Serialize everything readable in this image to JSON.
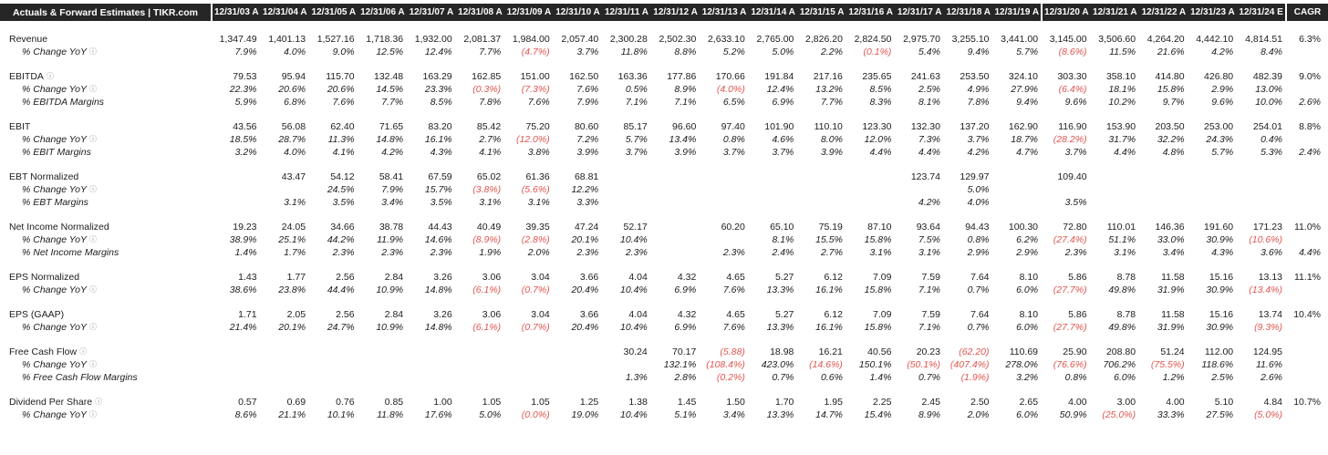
{
  "colors": {
    "header_bg": "#262626",
    "header_text": "#ffffff",
    "text": "#1c1c1c",
    "negative": "#df5650"
  },
  "header": {
    "title": "Actuals & Forward Estimates | TIKR.com",
    "columns": [
      "12/31/03 A",
      "12/31/04 A",
      "12/31/05 A",
      "12/31/06 A",
      "12/31/07 A",
      "12/31/08 A",
      "12/31/09 A",
      "12/31/10 A",
      "12/31/11 A",
      "12/31/12 A",
      "12/31/13 A",
      "12/31/14 A",
      "12/31/15 A",
      "12/31/16 A",
      "12/31/17 A",
      "12/31/18 A",
      "12/31/19 A",
      "12/31/20 A",
      "12/31/21 A",
      "12/31/22 A",
      "12/31/23 A",
      "12/31/24 E",
      "CAGR"
    ],
    "separators_before": [
      "12/31/20 A",
      "CAGR"
    ]
  },
  "info_icon_glyph": "ⓘ",
  "groups": [
    {
      "name": "revenue",
      "rows": [
        {
          "label": "Revenue",
          "style": "main",
          "info": false,
          "values": [
            "1,347.49",
            "1,401.13",
            "1,527.16",
            "1,718.36",
            "1,932.00",
            "2,081.37",
            "1,984.00",
            "2,057.40",
            "2,300.28",
            "2,502.30",
            "2,633.10",
            "2,765.00",
            "2,826.20",
            "2,824.50",
            "2,975.70",
            "3,255.10",
            "3,441.00",
            "3,145.00",
            "3,506.60",
            "4,264.20",
            "4,442.10",
            "4,814.51",
            "6.3%"
          ]
        },
        {
          "label": "% Change YoY",
          "style": "sub",
          "info": true,
          "values": [
            "7.9%",
            "4.0%",
            "9.0%",
            "12.5%",
            "12.4%",
            "7.7%",
            "(4.7%)",
            "3.7%",
            "11.8%",
            "8.8%",
            "5.2%",
            "5.0%",
            "2.2%",
            "(0.1%)",
            "5.4%",
            "9.4%",
            "5.7%",
            "(8.6%)",
            "11.5%",
            "21.6%",
            "4.2%",
            "8.4%",
            ""
          ]
        }
      ]
    },
    {
      "name": "ebitda",
      "rows": [
        {
          "label": "EBITDA",
          "style": "main",
          "info": true,
          "values": [
            "79.53",
            "95.94",
            "115.70",
            "132.48",
            "163.29",
            "162.85",
            "151.00",
            "162.50",
            "163.36",
            "177.86",
            "170.66",
            "191.84",
            "217.16",
            "235.65",
            "241.63",
            "253.50",
            "324.10",
            "303.30",
            "358.10",
            "414.80",
            "426.80",
            "482.39",
            "9.0%"
          ]
        },
        {
          "label": "% Change YoY",
          "style": "sub",
          "info": true,
          "values": [
            "22.3%",
            "20.6%",
            "20.6%",
            "14.5%",
            "23.3%",
            "(0.3%)",
            "(7.3%)",
            "7.6%",
            "0.5%",
            "8.9%",
            "(4.0%)",
            "12.4%",
            "13.2%",
            "8.5%",
            "2.5%",
            "4.9%",
            "27.9%",
            "(6.4%)",
            "18.1%",
            "15.8%",
            "2.9%",
            "13.0%",
            ""
          ]
        },
        {
          "label": "% EBITDA Margins",
          "style": "sub",
          "info": false,
          "values": [
            "5.9%",
            "6.8%",
            "7.6%",
            "7.7%",
            "8.5%",
            "7.8%",
            "7.6%",
            "7.9%",
            "7.1%",
            "7.1%",
            "6.5%",
            "6.9%",
            "7.7%",
            "8.3%",
            "8.1%",
            "7.8%",
            "9.4%",
            "9.6%",
            "10.2%",
            "9.7%",
            "9.6%",
            "10.0%",
            "2.6%"
          ]
        }
      ]
    },
    {
      "name": "ebit",
      "rows": [
        {
          "label": "EBIT",
          "style": "main",
          "info": false,
          "values": [
            "43.56",
            "56.08",
            "62.40",
            "71.65",
            "83.20",
            "85.42",
            "75.20",
            "80.60",
            "85.17",
            "96.60",
            "97.40",
            "101.90",
            "110.10",
            "123.30",
            "132.30",
            "137.20",
            "162.90",
            "116.90",
            "153.90",
            "203.50",
            "253.00",
            "254.01",
            "8.8%"
          ]
        },
        {
          "label": "% Change YoY",
          "style": "sub",
          "info": true,
          "values": [
            "18.5%",
            "28.7%",
            "11.3%",
            "14.8%",
            "16.1%",
            "2.7%",
            "(12.0%)",
            "7.2%",
            "5.7%",
            "13.4%",
            "0.8%",
            "4.6%",
            "8.0%",
            "12.0%",
            "7.3%",
            "3.7%",
            "18.7%",
            "(28.2%)",
            "31.7%",
            "32.2%",
            "24.3%",
            "0.4%",
            ""
          ]
        },
        {
          "label": "% EBIT Margins",
          "style": "sub",
          "info": false,
          "values": [
            "3.2%",
            "4.0%",
            "4.1%",
            "4.2%",
            "4.3%",
            "4.1%",
            "3.8%",
            "3.9%",
            "3.7%",
            "3.9%",
            "3.7%",
            "3.7%",
            "3.9%",
            "4.4%",
            "4.4%",
            "4.2%",
            "4.7%",
            "3.7%",
            "4.4%",
            "4.8%",
            "5.7%",
            "5.3%",
            "2.4%"
          ]
        }
      ]
    },
    {
      "name": "ebt-normalized",
      "rows": [
        {
          "label": "EBT Normalized",
          "style": "main",
          "info": false,
          "values": [
            "",
            "43.47",
            "54.12",
            "58.41",
            "67.59",
            "65.02",
            "61.36",
            "68.81",
            "",
            "",
            "",
            "",
            "",
            "",
            "123.74",
            "129.97",
            "",
            "109.40",
            "",
            "",
            "",
            "",
            ""
          ]
        },
        {
          "label": "% Change YoY",
          "style": "sub",
          "info": true,
          "values": [
            "",
            "",
            "24.5%",
            "7.9%",
            "15.7%",
            "(3.8%)",
            "(5.6%)",
            "12.2%",
            "",
            "",
            "",
            "",
            "",
            "",
            "",
            "5.0%",
            "",
            "",
            "",
            "",
            "",
            "",
            ""
          ]
        },
        {
          "label": "% EBT Margins",
          "style": "sub",
          "info": false,
          "values": [
            "",
            "3.1%",
            "3.5%",
            "3.4%",
            "3.5%",
            "3.1%",
            "3.1%",
            "3.3%",
            "",
            "",
            "",
            "",
            "",
            "",
            "4.2%",
            "4.0%",
            "",
            "3.5%",
            "",
            "",
            "",
            "",
            ""
          ]
        }
      ]
    },
    {
      "name": "net-income-normalized",
      "rows": [
        {
          "label": "Net Income Normalized",
          "style": "main",
          "info": false,
          "values": [
            "19.23",
            "24.05",
            "34.66",
            "38.78",
            "44.43",
            "40.49",
            "39.35",
            "47.24",
            "52.17",
            "",
            "60.20",
            "65.10",
            "75.19",
            "87.10",
            "93.64",
            "94.43",
            "100.30",
            "72.80",
            "110.01",
            "146.36",
            "191.60",
            "171.23",
            "11.0%"
          ]
        },
        {
          "label": "% Change YoY",
          "style": "sub",
          "info": true,
          "values": [
            "38.9%",
            "25.1%",
            "44.2%",
            "11.9%",
            "14.6%",
            "(8.9%)",
            "(2.8%)",
            "20.1%",
            "10.4%",
            "",
            "",
            "8.1%",
            "15.5%",
            "15.8%",
            "7.5%",
            "0.8%",
            "6.2%",
            "(27.4%)",
            "51.1%",
            "33.0%",
            "30.9%",
            "(10.6%)",
            ""
          ]
        },
        {
          "label": "% Net Income Margins",
          "style": "sub",
          "info": false,
          "values": [
            "1.4%",
            "1.7%",
            "2.3%",
            "2.3%",
            "2.3%",
            "1.9%",
            "2.0%",
            "2.3%",
            "2.3%",
            "",
            "2.3%",
            "2.4%",
            "2.7%",
            "3.1%",
            "3.1%",
            "2.9%",
            "2.9%",
            "2.3%",
            "3.1%",
            "3.4%",
            "4.3%",
            "3.6%",
            "4.4%"
          ]
        }
      ]
    },
    {
      "name": "eps-normalized",
      "rows": [
        {
          "label": "EPS Normalized",
          "style": "main",
          "info": false,
          "values": [
            "1.43",
            "1.77",
            "2.56",
            "2.84",
            "3.26",
            "3.06",
            "3.04",
            "3.66",
            "4.04",
            "4.32",
            "4.65",
            "5.27",
            "6.12",
            "7.09",
            "7.59",
            "7.64",
            "8.10",
            "5.86",
            "8.78",
            "11.58",
            "15.16",
            "13.13",
            "11.1%"
          ]
        },
        {
          "label": "% Change YoY",
          "style": "sub",
          "info": true,
          "values": [
            "38.6%",
            "23.8%",
            "44.4%",
            "10.9%",
            "14.8%",
            "(6.1%)",
            "(0.7%)",
            "20.4%",
            "10.4%",
            "6.9%",
            "7.6%",
            "13.3%",
            "16.1%",
            "15.8%",
            "7.1%",
            "0.7%",
            "6.0%",
            "(27.7%)",
            "49.8%",
            "31.9%",
            "30.9%",
            "(13.4%)",
            ""
          ]
        }
      ]
    },
    {
      "name": "eps-gaap",
      "rows": [
        {
          "label": "EPS (GAAP)",
          "style": "main",
          "info": false,
          "values": [
            "1.71",
            "2.05",
            "2.56",
            "2.84",
            "3.26",
            "3.06",
            "3.04",
            "3.66",
            "4.04",
            "4.32",
            "4.65",
            "5.27",
            "6.12",
            "7.09",
            "7.59",
            "7.64",
            "8.10",
            "5.86",
            "8.78",
            "11.58",
            "15.16",
            "13.74",
            "10.4%"
          ]
        },
        {
          "label": "% Change YoY",
          "style": "sub",
          "info": true,
          "values": [
            "21.4%",
            "20.1%",
            "24.7%",
            "10.9%",
            "14.8%",
            "(6.1%)",
            "(0.7%)",
            "20.4%",
            "10.4%",
            "6.9%",
            "7.6%",
            "13.3%",
            "16.1%",
            "15.8%",
            "7.1%",
            "0.7%",
            "6.0%",
            "(27.7%)",
            "49.8%",
            "31.9%",
            "30.9%",
            "(9.3%)",
            ""
          ]
        }
      ]
    },
    {
      "name": "free-cash-flow",
      "rows": [
        {
          "label": "Free Cash Flow",
          "style": "main",
          "info": true,
          "values": [
            "",
            "",
            "",
            "",
            "",
            "",
            "",
            "",
            "30.24",
            "70.17",
            "(5.88)",
            "18.98",
            "16.21",
            "40.56",
            "20.23",
            "(62.20)",
            "110.69",
            "25.90",
            "208.80",
            "51.24",
            "112.00",
            "124.95",
            ""
          ]
        },
        {
          "label": "% Change YoY",
          "style": "sub",
          "info": true,
          "values": [
            "",
            "",
            "",
            "",
            "",
            "",
            "",
            "",
            "",
            "132.1%",
            "(108.4%)",
            "423.0%",
            "(14.6%)",
            "150.1%",
            "(50.1%)",
            "(407.4%)",
            "278.0%",
            "(76.6%)",
            "706.2%",
            "(75.5%)",
            "118.6%",
            "11.6%",
            ""
          ]
        },
        {
          "label": "% Free Cash Flow Margins",
          "style": "sub",
          "info": false,
          "values": [
            "",
            "",
            "",
            "",
            "",
            "",
            "",
            "",
            "1.3%",
            "2.8%",
            "(0.2%)",
            "0.7%",
            "0.6%",
            "1.4%",
            "0.7%",
            "(1.9%)",
            "3.2%",
            "0.8%",
            "6.0%",
            "1.2%",
            "2.5%",
            "2.6%",
            ""
          ]
        }
      ]
    },
    {
      "name": "dividend-per-share",
      "rows": [
        {
          "label": "Dividend Per Share",
          "style": "main",
          "info": true,
          "values": [
            "0.57",
            "0.69",
            "0.76",
            "0.85",
            "1.00",
            "1.05",
            "1.05",
            "1.25",
            "1.38",
            "1.45",
            "1.50",
            "1.70",
            "1.95",
            "2.25",
            "2.45",
            "2.50",
            "2.65",
            "4.00",
            "3.00",
            "4.00",
            "5.10",
            "4.84",
            "10.7%"
          ]
        },
        {
          "label": "% Change YoY",
          "style": "sub",
          "info": true,
          "values": [
            "8.6%",
            "21.1%",
            "10.1%",
            "11.8%",
            "17.6%",
            "5.0%",
            "(0.0%)",
            "19.0%",
            "10.4%",
            "5.1%",
            "3.4%",
            "13.3%",
            "14.7%",
            "15.4%",
            "8.9%",
            "2.0%",
            "6.0%",
            "50.9%",
            "(25.0%)",
            "33.3%",
            "27.5%",
            "(5.0%)",
            ""
          ]
        }
      ]
    }
  ]
}
